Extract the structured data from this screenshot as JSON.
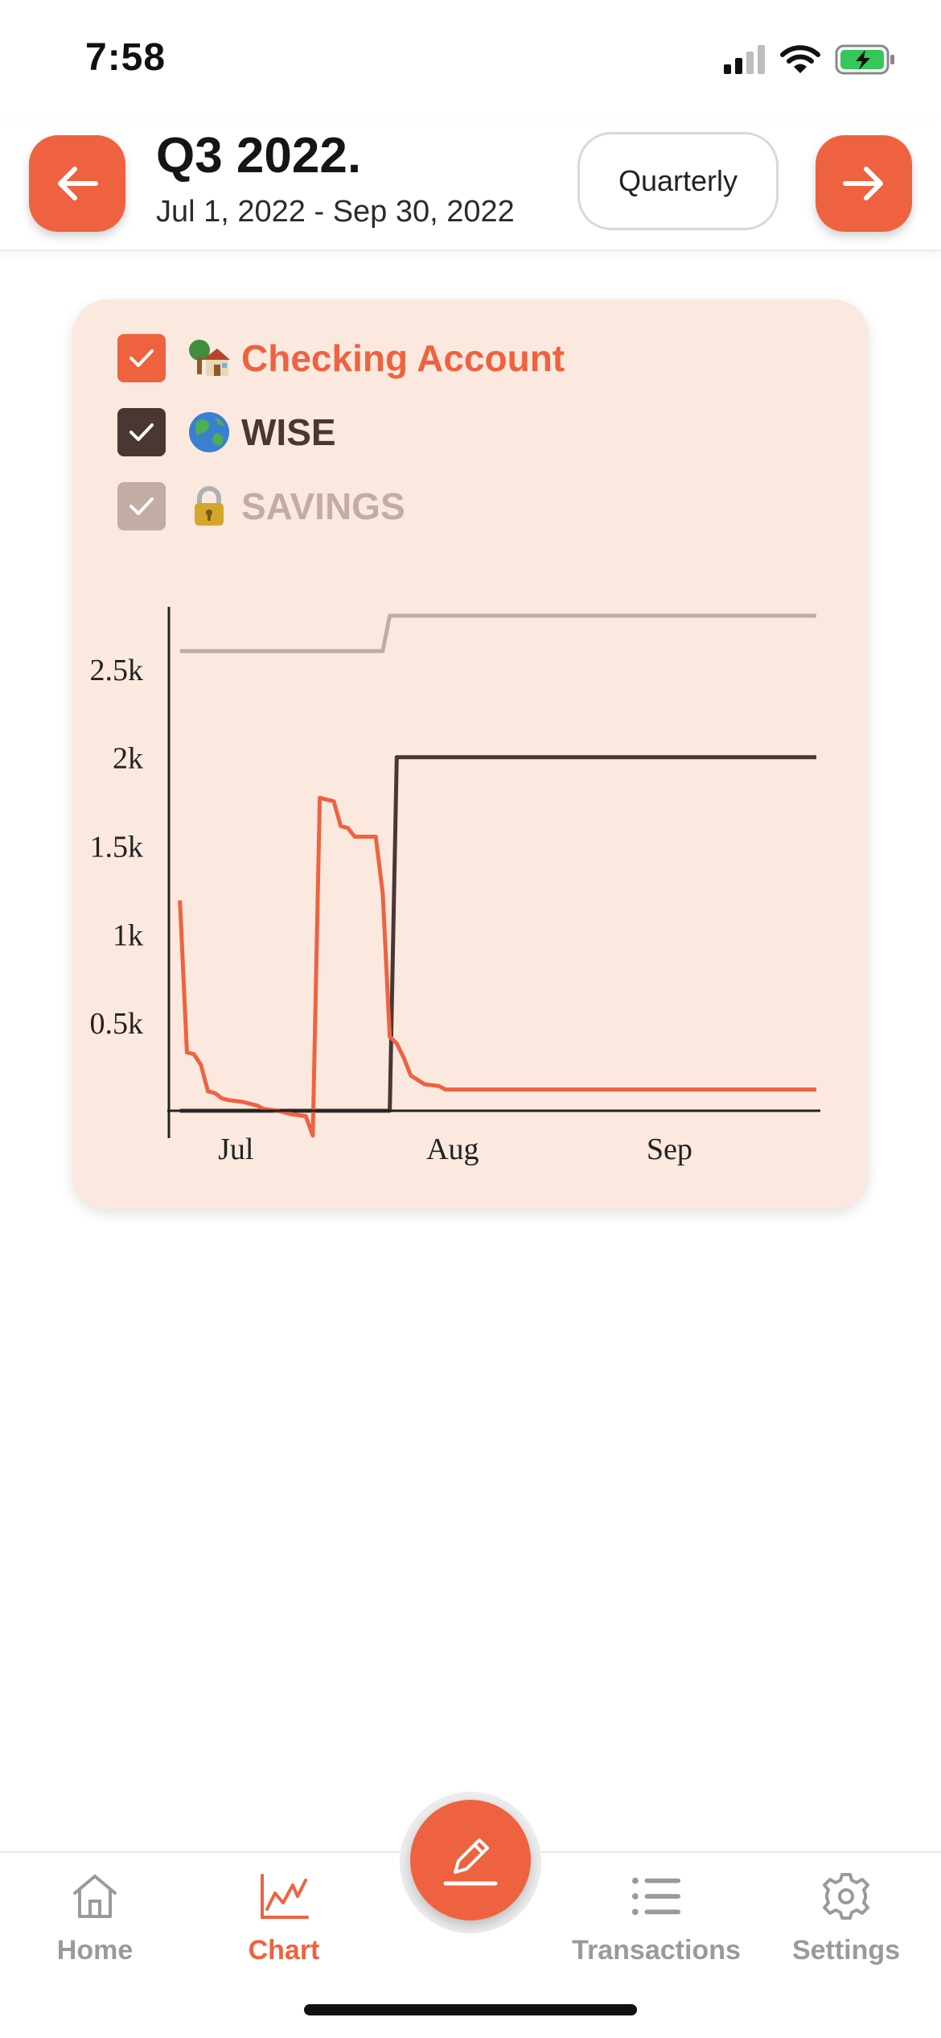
{
  "status_bar": {
    "time": "7:58"
  },
  "header": {
    "title": "Q3 2022.",
    "date_range": "Jul 1, 2022 - Sep 30, 2022",
    "period_select": "Quarterly",
    "prev_icon": "arrow-left-icon",
    "next_icon": "arrow-right-icon"
  },
  "accounts": [
    {
      "emoji": "house-with-tree-icon",
      "label": "Checking Account",
      "checked": true,
      "color": "#ef6240"
    },
    {
      "emoji": "globe-icon",
      "label": "WISE",
      "checked": true,
      "color": "#4a3733"
    },
    {
      "emoji": "lock-icon",
      "label": "SAVINGS",
      "checked": true,
      "color": "#c2aca4"
    }
  ],
  "chart_data": {
    "type": "line",
    "x_tick_labels": [
      "Jul",
      "Aug",
      "Sep"
    ],
    "y_tick_labels": [
      "0.5k",
      "1k",
      "1.5k",
      "2k",
      "2.5k"
    ],
    "ylim": [
      0,
      2850
    ],
    "xlim": [
      "2022-06-22",
      "2022-09-22"
    ],
    "grid": false,
    "series": [
      {
        "name": "Checking Account",
        "color": "#ef6240",
        "points": [
          [
            "2022-06-23",
            1190
          ],
          [
            "2022-06-24",
            330
          ],
          [
            "2022-06-25",
            320
          ],
          [
            "2022-06-26",
            260
          ],
          [
            "2022-06-27",
            110
          ],
          [
            "2022-06-28",
            100
          ],
          [
            "2022-06-29",
            70
          ],
          [
            "2022-06-30",
            60
          ],
          [
            "2022-07-02",
            50
          ],
          [
            "2022-07-04",
            30
          ],
          [
            "2022-07-05",
            10
          ],
          [
            "2022-07-07",
            0
          ],
          [
            "2022-07-09",
            -20
          ],
          [
            "2022-07-11",
            -30
          ],
          [
            "2022-07-12",
            -140
          ],
          [
            "2022-07-13",
            1770
          ],
          [
            "2022-07-15",
            1750
          ],
          [
            "2022-07-16",
            1610
          ],
          [
            "2022-07-17",
            1600
          ],
          [
            "2022-07-18",
            1550
          ],
          [
            "2022-07-20",
            1550
          ],
          [
            "2022-07-21",
            1550
          ],
          [
            "2022-07-22",
            1230
          ],
          [
            "2022-07-23",
            420
          ],
          [
            "2022-07-24",
            380
          ],
          [
            "2022-07-25",
            300
          ],
          [
            "2022-07-26",
            200
          ],
          [
            "2022-07-28",
            150
          ],
          [
            "2022-07-30",
            140
          ],
          [
            "2022-07-31",
            120
          ],
          [
            "2022-09-22",
            120
          ]
        ]
      },
      {
        "name": "WISE",
        "color": "#4a3733",
        "points": [
          [
            "2022-06-23",
            0
          ],
          [
            "2022-07-23",
            0
          ],
          [
            "2022-07-24",
            2000
          ],
          [
            "2022-09-22",
            2000
          ]
        ]
      },
      {
        "name": "SAVINGS",
        "color": "#c2aca4",
        "points": [
          [
            "2022-06-23",
            2600
          ],
          [
            "2022-07-22",
            2600
          ],
          [
            "2022-07-23",
            2800
          ],
          [
            "2022-09-22",
            2800
          ]
        ]
      }
    ]
  },
  "tabs": [
    {
      "label": "Home",
      "icon": "home-icon",
      "active": false
    },
    {
      "label": "Chart",
      "icon": "chart-icon",
      "active": true
    },
    {
      "label": "Transactions",
      "icon": "list-icon",
      "active": false
    },
    {
      "label": "Settings",
      "icon": "gear-icon",
      "active": false
    }
  ],
  "fab_icon": "pencil-icon"
}
